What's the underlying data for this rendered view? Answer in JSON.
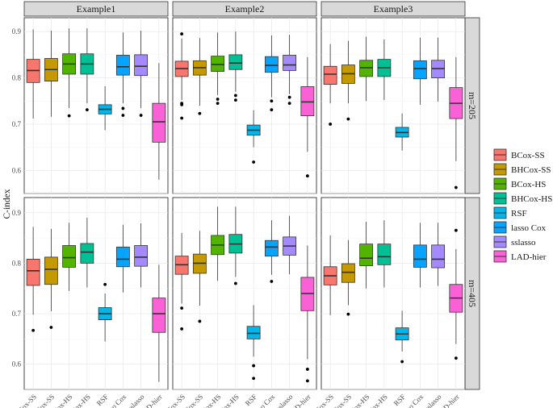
{
  "chart_data": {
    "type": "boxplot",
    "ylabel": "C-index",
    "ylim": [
      0.55,
      0.93
    ],
    "yticks": [
      0.6,
      0.7,
      0.8,
      0.9
    ],
    "ytick_labels": [
      "0.6",
      "0.7",
      "0.8",
      "0.9"
    ],
    "grid": true,
    "legend_position": "right",
    "columns": [
      "Example1",
      "Example2",
      "Example3"
    ],
    "rows": [
      "m=205",
      "m=405"
    ],
    "methods": [
      {
        "name": "BCox-SS",
        "color": "#F8766D"
      },
      {
        "name": "BHCox-SS",
        "color": "#C49A00"
      },
      {
        "name": "BCox-HS",
        "color": "#53B400"
      },
      {
        "name": "BHCox-HS",
        "color": "#00C094"
      },
      {
        "name": "RSF",
        "color": "#00B6EB"
      },
      {
        "name": "lasso Cox",
        "color": "#06A4FF"
      },
      {
        "name": "sslasso",
        "color": "#A58AFF"
      },
      {
        "name": "LAD-hier",
        "color": "#FB61D7"
      }
    ],
    "panels": [
      {
        "row": "m=205",
        "column": "Example1",
        "boxes": [
          {
            "method": "BCox-SS",
            "whisker_low": 0.712,
            "q1": 0.79,
            "median": 0.816,
            "q3": 0.84,
            "whisker_high": 0.905,
            "outliers": []
          },
          {
            "method": "BHCox-SS",
            "whisker_low": 0.716,
            "q1": 0.793,
            "median": 0.818,
            "q3": 0.842,
            "whisker_high": 0.902,
            "outliers": []
          },
          {
            "method": "BCox-HS",
            "whisker_low": 0.735,
            "q1": 0.808,
            "median": 0.83,
            "q3": 0.852,
            "whisker_high": 0.907,
            "outliers": [
              0.718
            ]
          },
          {
            "method": "BHCox-HS",
            "whisker_low": 0.745,
            "q1": 0.808,
            "median": 0.83,
            "q3": 0.852,
            "whisker_high": 0.907,
            "outliers": [
              0.731
            ]
          },
          {
            "method": "RSF",
            "whisker_low": 0.687,
            "q1": 0.722,
            "median": 0.732,
            "q3": 0.742,
            "whisker_high": 0.782,
            "outliers": []
          },
          {
            "method": "lasso Cox",
            "whisker_low": 0.745,
            "q1": 0.806,
            "median": 0.824,
            "q3": 0.849,
            "whisker_high": 0.898,
            "outliers": [
              0.734,
              0.719
            ]
          },
          {
            "method": "sslasso",
            "whisker_low": 0.735,
            "q1": 0.805,
            "median": 0.825,
            "q3": 0.85,
            "whisker_high": 0.902,
            "outliers": [
              0.719
            ]
          },
          {
            "method": "LAD-hier",
            "whisker_low": 0.58,
            "q1": 0.661,
            "median": 0.705,
            "q3": 0.745,
            "whisker_high": 0.832,
            "outliers": []
          }
        ]
      },
      {
        "row": "m=205",
        "column": "Example2",
        "boxes": [
          {
            "method": "BCox-SS",
            "whisker_low": 0.752,
            "q1": 0.803,
            "median": 0.82,
            "q3": 0.836,
            "whisker_high": 0.885,
            "outliers": [
              0.895,
              0.745,
              0.742,
              0.713
            ]
          },
          {
            "method": "BHCox-SS",
            "whisker_low": 0.74,
            "q1": 0.806,
            "median": 0.822,
            "q3": 0.837,
            "whisker_high": 0.886,
            "outliers": [
              0.723
            ]
          },
          {
            "method": "BCox-HS",
            "whisker_low": 0.763,
            "q1": 0.814,
            "median": 0.829,
            "q3": 0.847,
            "whisker_high": 0.898,
            "outliers": [
              0.754,
              0.745
            ]
          },
          {
            "method": "BHCox-HS",
            "whisker_low": 0.77,
            "q1": 0.818,
            "median": 0.832,
            "q3": 0.85,
            "whisker_high": 0.9,
            "outliers": [
              0.762,
              0.752
            ]
          },
          {
            "method": "RSF",
            "whisker_low": 0.65,
            "q1": 0.676,
            "median": 0.687,
            "q3": 0.698,
            "whisker_high": 0.73,
            "outliers": [
              0.618
            ]
          },
          {
            "method": "lasso Cox",
            "whisker_low": 0.758,
            "q1": 0.812,
            "median": 0.827,
            "q3": 0.846,
            "whisker_high": 0.892,
            "outliers": [
              0.75,
              0.731
            ]
          },
          {
            "method": "sslasso",
            "whisker_low": 0.765,
            "q1": 0.816,
            "median": 0.828,
            "q3": 0.849,
            "whisker_high": 0.893,
            "outliers": [
              0.758,
              0.745
            ]
          },
          {
            "method": "LAD-hier",
            "whisker_low": 0.64,
            "q1": 0.718,
            "median": 0.748,
            "q3": 0.781,
            "whisker_high": 0.845,
            "outliers": [
              0.588
            ]
          }
        ]
      },
      {
        "row": "m=205",
        "column": "Example3",
        "boxes": [
          {
            "method": "BCox-SS",
            "whisker_low": 0.745,
            "q1": 0.786,
            "median": 0.808,
            "q3": 0.825,
            "whisker_high": 0.873,
            "outliers": [
              0.7
            ]
          },
          {
            "method": "BHCox-SS",
            "whisker_low": 0.745,
            "q1": 0.788,
            "median": 0.809,
            "q3": 0.828,
            "whisker_high": 0.88,
            "outliers": [
              0.711
            ]
          },
          {
            "method": "BCox-HS",
            "whisker_low": 0.75,
            "q1": 0.803,
            "median": 0.822,
            "q3": 0.838,
            "whisker_high": 0.889,
            "outliers": []
          },
          {
            "method": "BHCox-HS",
            "whisker_low": 0.752,
            "q1": 0.803,
            "median": 0.822,
            "q3": 0.84,
            "whisker_high": 0.883,
            "outliers": []
          },
          {
            "method": "RSF",
            "whisker_low": 0.643,
            "q1": 0.672,
            "median": 0.682,
            "q3": 0.693,
            "whisker_high": 0.723,
            "outliers": []
          },
          {
            "method": "lasso Cox",
            "whisker_low": 0.742,
            "q1": 0.798,
            "median": 0.82,
            "q3": 0.837,
            "whisker_high": 0.887,
            "outliers": []
          },
          {
            "method": "sslasso",
            "whisker_low": 0.749,
            "q1": 0.8,
            "median": 0.82,
            "q3": 0.838,
            "whisker_high": 0.887,
            "outliers": []
          },
          {
            "method": "LAD-hier",
            "whisker_low": 0.62,
            "q1": 0.712,
            "median": 0.745,
            "q3": 0.779,
            "whisker_high": 0.845,
            "outliers": [
              0.563
            ]
          }
        ]
      },
      {
        "row": "m=405",
        "column": "Example1",
        "boxes": [
          {
            "method": "BCox-SS",
            "whisker_low": 0.698,
            "q1": 0.756,
            "median": 0.785,
            "q3": 0.808,
            "whisker_high": 0.872,
            "outliers": [
              0.667
            ]
          },
          {
            "method": "BHCox-SS",
            "whisker_low": 0.705,
            "q1": 0.758,
            "median": 0.788,
            "q3": 0.812,
            "whisker_high": 0.868,
            "outliers": [
              0.673
            ]
          },
          {
            "method": "BCox-HS",
            "whisker_low": 0.745,
            "q1": 0.792,
            "median": 0.811,
            "q3": 0.835,
            "whisker_high": 0.88,
            "outliers": []
          },
          {
            "method": "BHCox-HS",
            "whisker_low": 0.752,
            "q1": 0.8,
            "median": 0.822,
            "q3": 0.839,
            "whisker_high": 0.89,
            "outliers": []
          },
          {
            "method": "RSF",
            "whisker_low": 0.645,
            "q1": 0.688,
            "median": 0.7,
            "q3": 0.712,
            "whisker_high": 0.74,
            "outliers": [
              0.758
            ]
          },
          {
            "method": "lasso Cox",
            "whisker_low": 0.742,
            "q1": 0.793,
            "median": 0.808,
            "q3": 0.832,
            "whisker_high": 0.876,
            "outliers": []
          },
          {
            "method": "sslasso",
            "whisker_low": 0.752,
            "q1": 0.794,
            "median": 0.812,
            "q3": 0.835,
            "whisker_high": 0.879,
            "outliers": []
          },
          {
            "method": "LAD-hier",
            "whisker_low": 0.565,
            "q1": 0.663,
            "median": 0.7,
            "q3": 0.731,
            "whisker_high": 0.797,
            "outliers": []
          }
        ]
      },
      {
        "row": "m=405",
        "column": "Example2",
        "boxes": [
          {
            "method": "BCox-SS",
            "whisker_low": 0.72,
            "q1": 0.778,
            "median": 0.797,
            "q3": 0.814,
            "whisker_high": 0.86,
            "outliers": [
              0.711,
              0.67
            ]
          },
          {
            "method": "BHCox-SS",
            "whisker_low": 0.716,
            "q1": 0.78,
            "median": 0.8,
            "q3": 0.818,
            "whisker_high": 0.864,
            "outliers": [
              0.685
            ]
          },
          {
            "method": "BCox-HS",
            "whisker_low": 0.765,
            "q1": 0.817,
            "median": 0.836,
            "q3": 0.855,
            "whisker_high": 0.912,
            "outliers": []
          },
          {
            "method": "BHCox-HS",
            "whisker_low": 0.773,
            "q1": 0.82,
            "median": 0.838,
            "q3": 0.857,
            "whisker_high": 0.912,
            "outliers": [
              0.76
            ]
          },
          {
            "method": "RSF",
            "whisker_low": 0.615,
            "q1": 0.65,
            "median": 0.661,
            "q3": 0.675,
            "whisker_high": 0.717,
            "outliers": [
              0.597,
              0.572
            ]
          },
          {
            "method": "lasso Cox",
            "whisker_low": 0.777,
            "q1": 0.814,
            "median": 0.832,
            "q3": 0.845,
            "whisker_high": 0.885,
            "outliers": [
              0.764
            ]
          },
          {
            "method": "sslasso",
            "whisker_low": 0.778,
            "q1": 0.816,
            "median": 0.834,
            "q3": 0.852,
            "whisker_high": 0.894,
            "outliers": []
          },
          {
            "method": "LAD-hier",
            "whisker_low": 0.61,
            "q1": 0.706,
            "median": 0.74,
            "q3": 0.772,
            "whisker_high": 0.835,
            "outliers": [
              0.59,
              0.567
            ]
          }
        ]
      },
      {
        "row": "m=405",
        "column": "Example3",
        "boxes": [
          {
            "method": "BCox-SS",
            "whisker_low": 0.697,
            "q1": 0.757,
            "median": 0.775,
            "q3": 0.793,
            "whisker_high": 0.855,
            "outliers": []
          },
          {
            "method": "BHCox-SS",
            "whisker_low": 0.717,
            "q1": 0.762,
            "median": 0.782,
            "q3": 0.799,
            "whisker_high": 0.846,
            "outliers": [
              0.699
            ]
          },
          {
            "method": "BCox-HS",
            "whisker_low": 0.75,
            "q1": 0.795,
            "median": 0.81,
            "q3": 0.838,
            "whisker_high": 0.882,
            "outliers": []
          },
          {
            "method": "BHCox-HS",
            "whisker_low": 0.752,
            "q1": 0.797,
            "median": 0.813,
            "q3": 0.838,
            "whisker_high": 0.885,
            "outliers": []
          },
          {
            "method": "RSF",
            "whisker_low": 0.625,
            "q1": 0.648,
            "median": 0.66,
            "q3": 0.672,
            "whisker_high": 0.706,
            "outliers": [
              0.605
            ]
          },
          {
            "method": "lasso Cox",
            "whisker_low": 0.752,
            "q1": 0.792,
            "median": 0.808,
            "q3": 0.836,
            "whisker_high": 0.88,
            "outliers": []
          },
          {
            "method": "sslasso",
            "whisker_low": 0.755,
            "q1": 0.791,
            "median": 0.808,
            "q3": 0.836,
            "whisker_high": 0.88,
            "outliers": []
          },
          {
            "method": "LAD-hier",
            "whisker_low": 0.64,
            "q1": 0.703,
            "median": 0.731,
            "q3": 0.758,
            "whisker_high": 0.828,
            "outliers": [
              0.865,
              0.612
            ]
          }
        ]
      }
    ]
  }
}
